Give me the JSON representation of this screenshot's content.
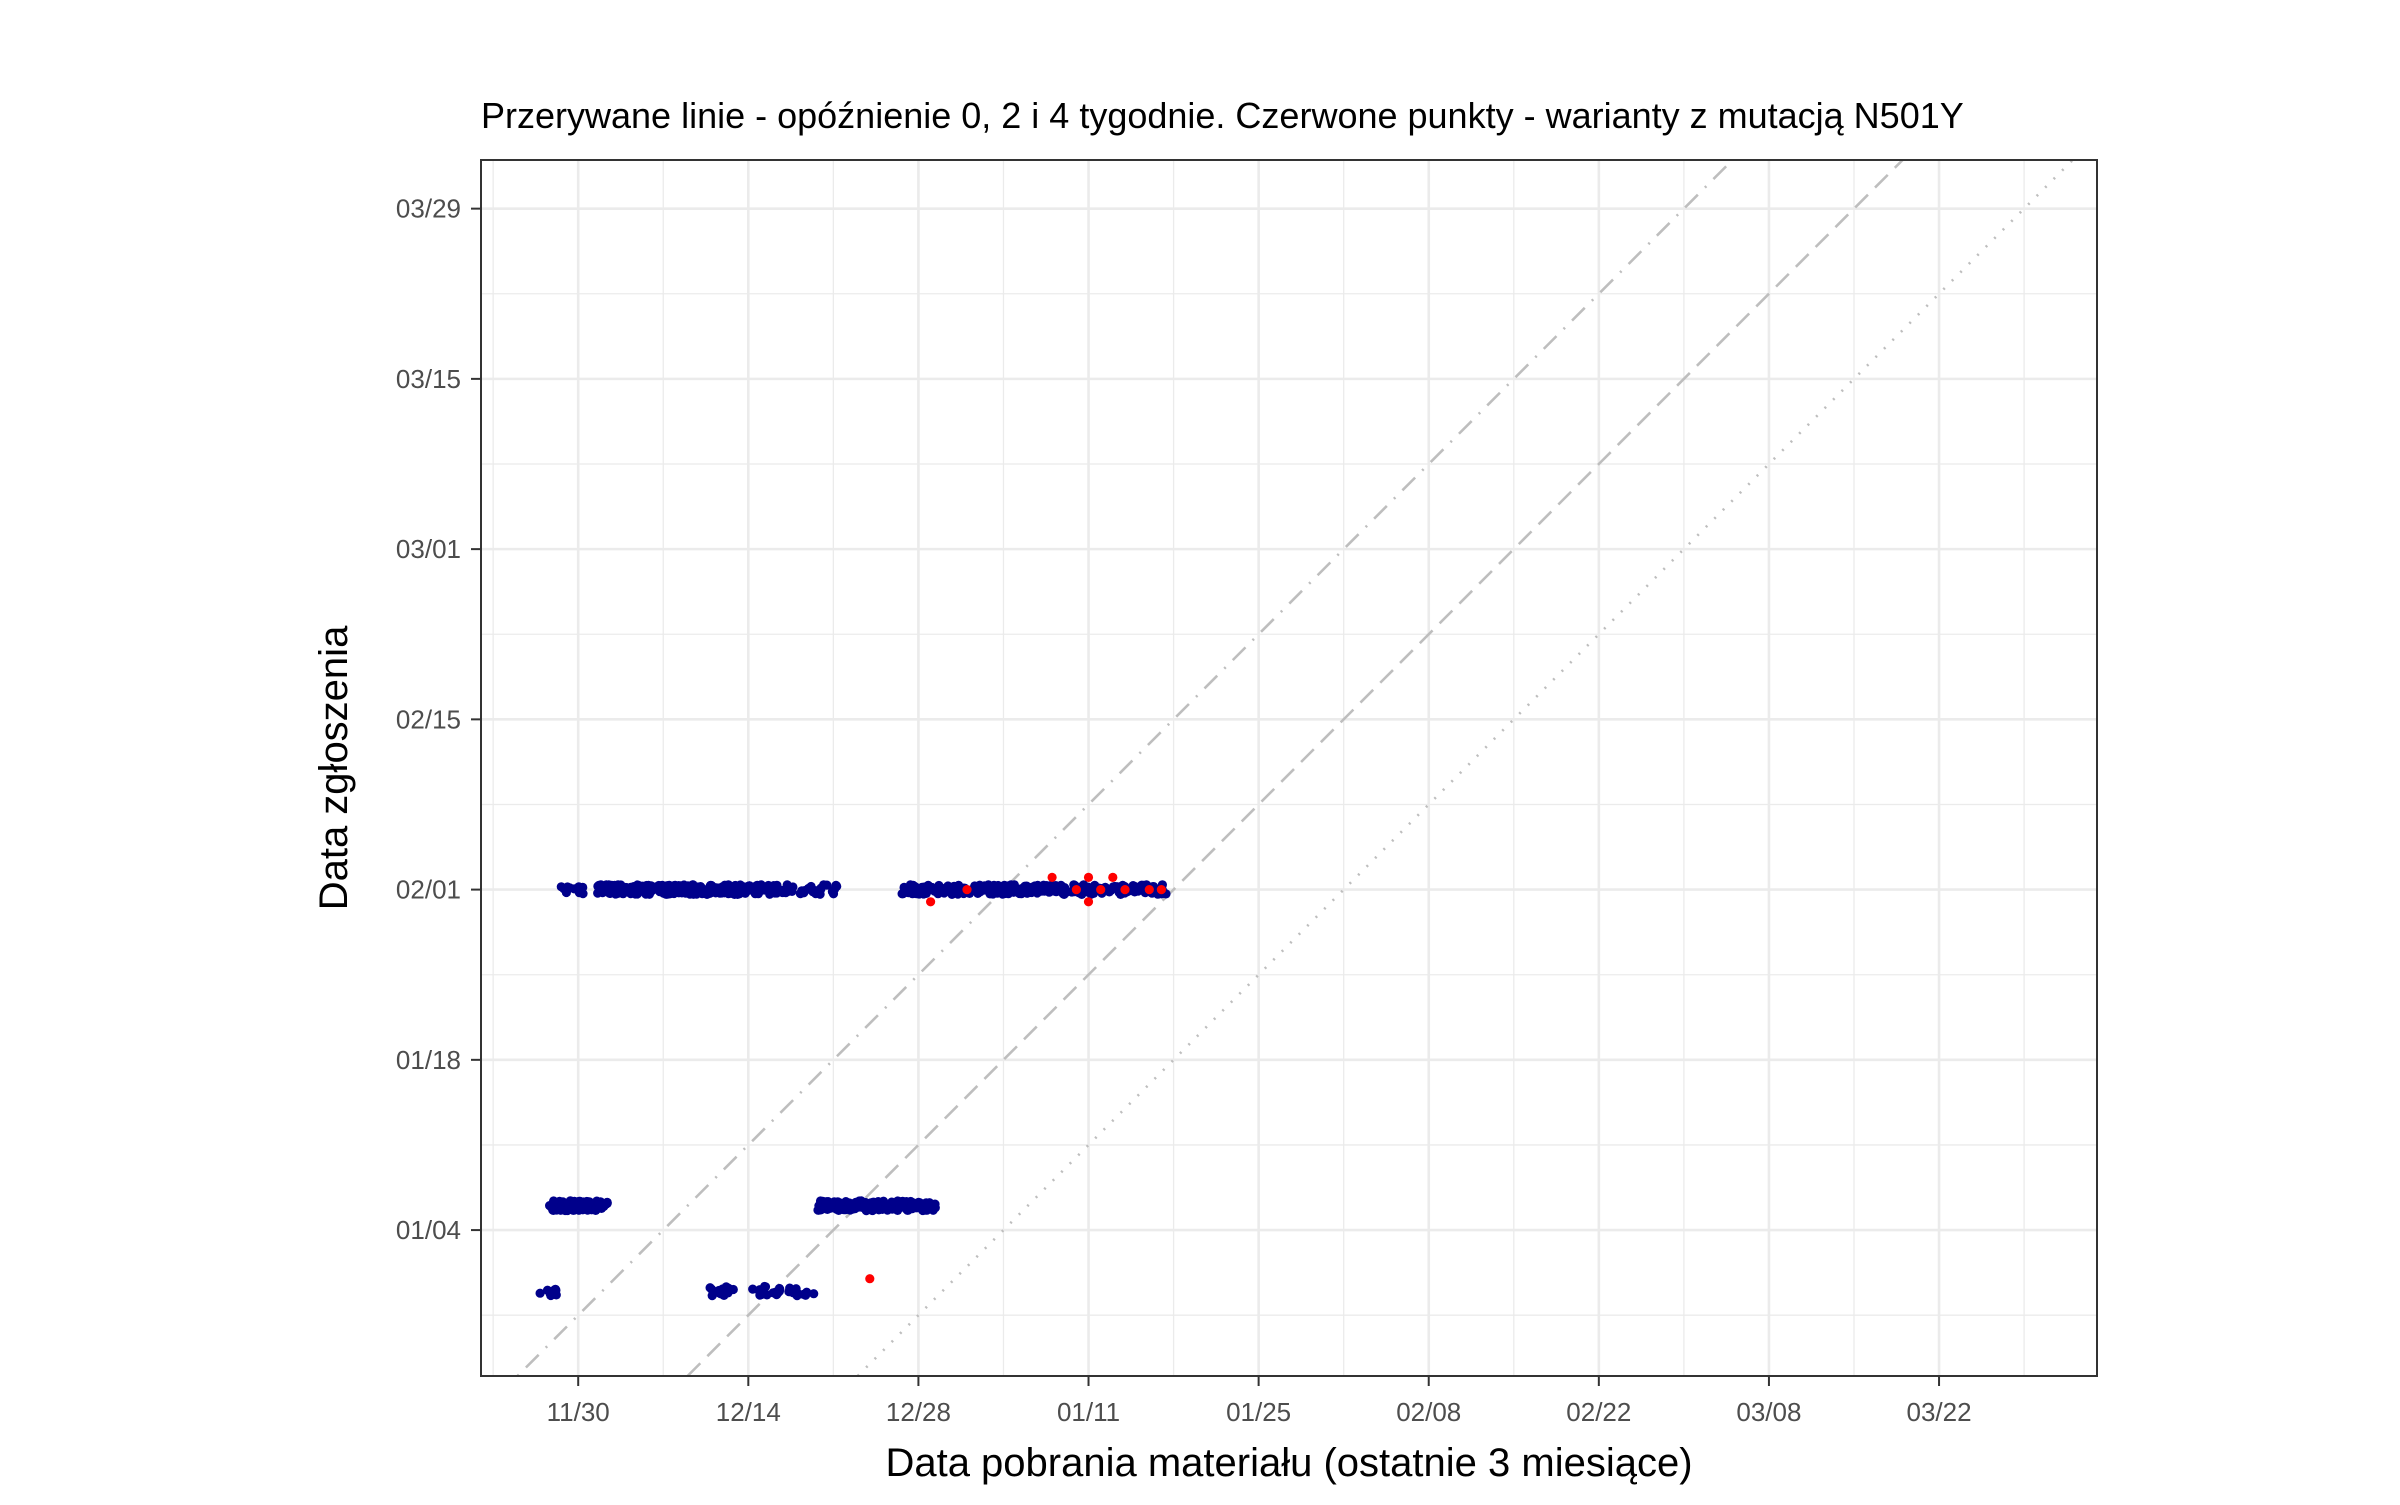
{
  "chart_data": {
    "type": "scatter",
    "title": "Przerywane linie - opóźnienie 0, 2 i 4 tygodnie. Czerwone punkty - warianty z mutacją N501Y",
    "xlabel": "Data pobrania materiału (ostatnie 3 miesiące)",
    "ylabel": "Data zgłoszenia",
    "x_axis": {
      "type": "date",
      "range": [
        "2020-11-22",
        "2021-04-04"
      ],
      "ticks": [
        "2020-11-30",
        "2020-12-14",
        "2020-12-28",
        "2021-01-11",
        "2021-01-25",
        "2021-02-08",
        "2021-02-22",
        "2021-03-08",
        "2021-03-22"
      ],
      "tick_labels": [
        "11/30",
        "12/14",
        "12/28",
        "01/11",
        "01/25",
        "02/08",
        "02/22",
        "03/08",
        "03/22"
      ]
    },
    "y_axis": {
      "type": "date",
      "range": [
        "2020-12-23",
        "2021-04-02"
      ],
      "ticks": [
        "2021-01-04",
        "2021-01-18",
        "2021-02-01",
        "2021-02-15",
        "2021-03-01",
        "2021-03-15",
        "2021-03-29"
      ],
      "tick_labels": [
        "01/04",
        "01/18",
        "02/01",
        "02/15",
        "03/01",
        "03/15",
        "03/29"
      ]
    },
    "reference_lines": [
      {
        "delay_weeks": 0,
        "style": "dotted"
      },
      {
        "delay_weeks": 2,
        "style": "dashed"
      },
      {
        "delay_weeks": 4,
        "style": "dotdash"
      }
    ],
    "grid": true,
    "legend": "none",
    "colors": {
      "default": "#00008b",
      "N501Y": "#ff0000",
      "reference_line": "#bebebe",
      "grid": "#ebebeb",
      "panel_border": "#333333"
    },
    "clusters": [
      {
        "reported": "2021-02-01",
        "sampled_from": "2020-11-29",
        "sampled_to": "2020-11-30",
        "points": 12,
        "color": "default"
      },
      {
        "reported": "2021-02-01",
        "sampled_from": "2020-12-02",
        "sampled_to": "2020-12-16",
        "points": 330,
        "color": "default"
      },
      {
        "reported": "2021-02-01",
        "sampled_from": "2020-12-17",
        "sampled_to": "2020-12-21",
        "points": 35,
        "color": "default"
      },
      {
        "reported": "2021-02-01",
        "sampled_from": "2020-12-27",
        "sampled_to": "2021-01-17",
        "points": 260,
        "color": "default"
      },
      {
        "reported": "2021-01-06",
        "sampled_from": "2020-11-28",
        "sampled_to": "2020-12-02",
        "points": 110,
        "color": "default"
      },
      {
        "reported": "2021-01-06",
        "sampled_from": "2020-12-20",
        "sampled_to": "2020-12-29",
        "points": 150,
        "color": "default"
      },
      {
        "reported": "2020-12-30",
        "sampled_from": "2020-11-27",
        "sampled_to": "2020-11-28",
        "points": 10,
        "color": "default"
      },
      {
        "reported": "2020-12-30",
        "sampled_from": "2020-12-11",
        "sampled_to": "2020-12-19",
        "points": 45,
        "color": "default"
      }
    ],
    "highlighted_points": [
      {
        "x": "2020-12-24",
        "y": "2020-12-31",
        "variant": "N501Y"
      },
      {
        "x": "2020-12-29",
        "y": "2021-01-31",
        "variant": "N501Y"
      },
      {
        "x": "2021-01-01",
        "y": "2021-02-01",
        "variant": "N501Y"
      },
      {
        "x": "2021-01-08",
        "y": "2021-02-02",
        "variant": "N501Y"
      },
      {
        "x": "2021-01-10",
        "y": "2021-02-01",
        "variant": "N501Y"
      },
      {
        "x": "2021-01-11",
        "y": "2021-02-02",
        "variant": "N501Y"
      },
      {
        "x": "2021-01-11",
        "y": "2021-01-31",
        "variant": "N501Y"
      },
      {
        "x": "2021-01-12",
        "y": "2021-02-01",
        "variant": "N501Y"
      },
      {
        "x": "2021-01-13",
        "y": "2021-02-02",
        "variant": "N501Y"
      },
      {
        "x": "2021-01-14",
        "y": "2021-02-01",
        "variant": "N501Y"
      },
      {
        "x": "2021-01-16",
        "y": "2021-02-01",
        "variant": "N501Y"
      },
      {
        "x": "2021-01-17",
        "y": "2021-02-01",
        "variant": "N501Y"
      }
    ]
  }
}
